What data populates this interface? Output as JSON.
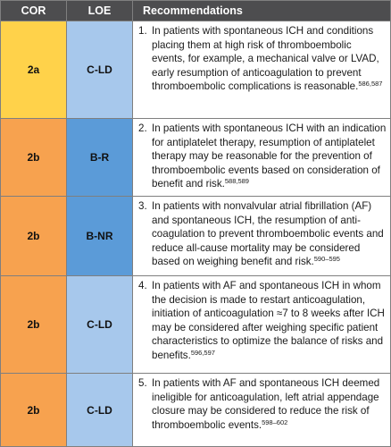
{
  "header": {
    "cor": "COR",
    "loe": "LOE",
    "recommendations": "Recommendations"
  },
  "colors": {
    "header_bg": "#4d4d4f",
    "cor_2a": "#ffd24a",
    "cor_2b": "#f7a24f",
    "loe_c_ld": "#a7c8ec",
    "loe_b": "#5b9bd8",
    "row_bg": "#ffffff"
  },
  "rows": [
    {
      "cor": "2a",
      "loe": "C-LD",
      "number": "1.",
      "text": "In patients with spontaneous ICH and condi­tions placing them at high risk of thrombo­embolic events, for example, a mechanical valve or LVAD, early resumption of anticoagulation to prevent thromboembolic complications is reasonable.",
      "refs": "586,587"
    },
    {
      "cor": "2b",
      "loe": "B-R",
      "number": "2.",
      "text": "In patients with spontaneous ICH with an indi­cation for antiplatelet therapy, resumption of antiplatelet therapy may be reasonable for the prevention of thromboembolic events based on consideration of benefit and risk.",
      "refs": "588,589"
    },
    {
      "cor": "2b",
      "loe": "B-NR",
      "number": "3.",
      "text": "In patients with nonvalvular atrial fibrillation (AF) and spontaneous ICH, the resumption of anti­coagulation to prevent thromboembolic events and reduce all-cause mortality may be consid­ered based on weighing benefit and risk.",
      "refs": "590–595"
    },
    {
      "cor": "2b",
      "loe": "C-LD",
      "number": "4.",
      "text": "In patients with AF and spontaneous ICH in whom the decision is made to restart antico­agulation, initiation of anticoagulation ≈7 to 8 weeks after ICH may be considered after weighing specific patient characteristics to optimize the balance of risks and benefits.",
      "refs": "596,597"
    },
    {
      "cor": "2b",
      "loe": "C-LD",
      "number": "5.",
      "text": "In patients with AF and spontaneous ICH deemed ineligible for anticoagulation, left atrial appendage closure may be considered to reduce the risk of thromboembolic events.",
      "refs": "598–602"
    }
  ]
}
